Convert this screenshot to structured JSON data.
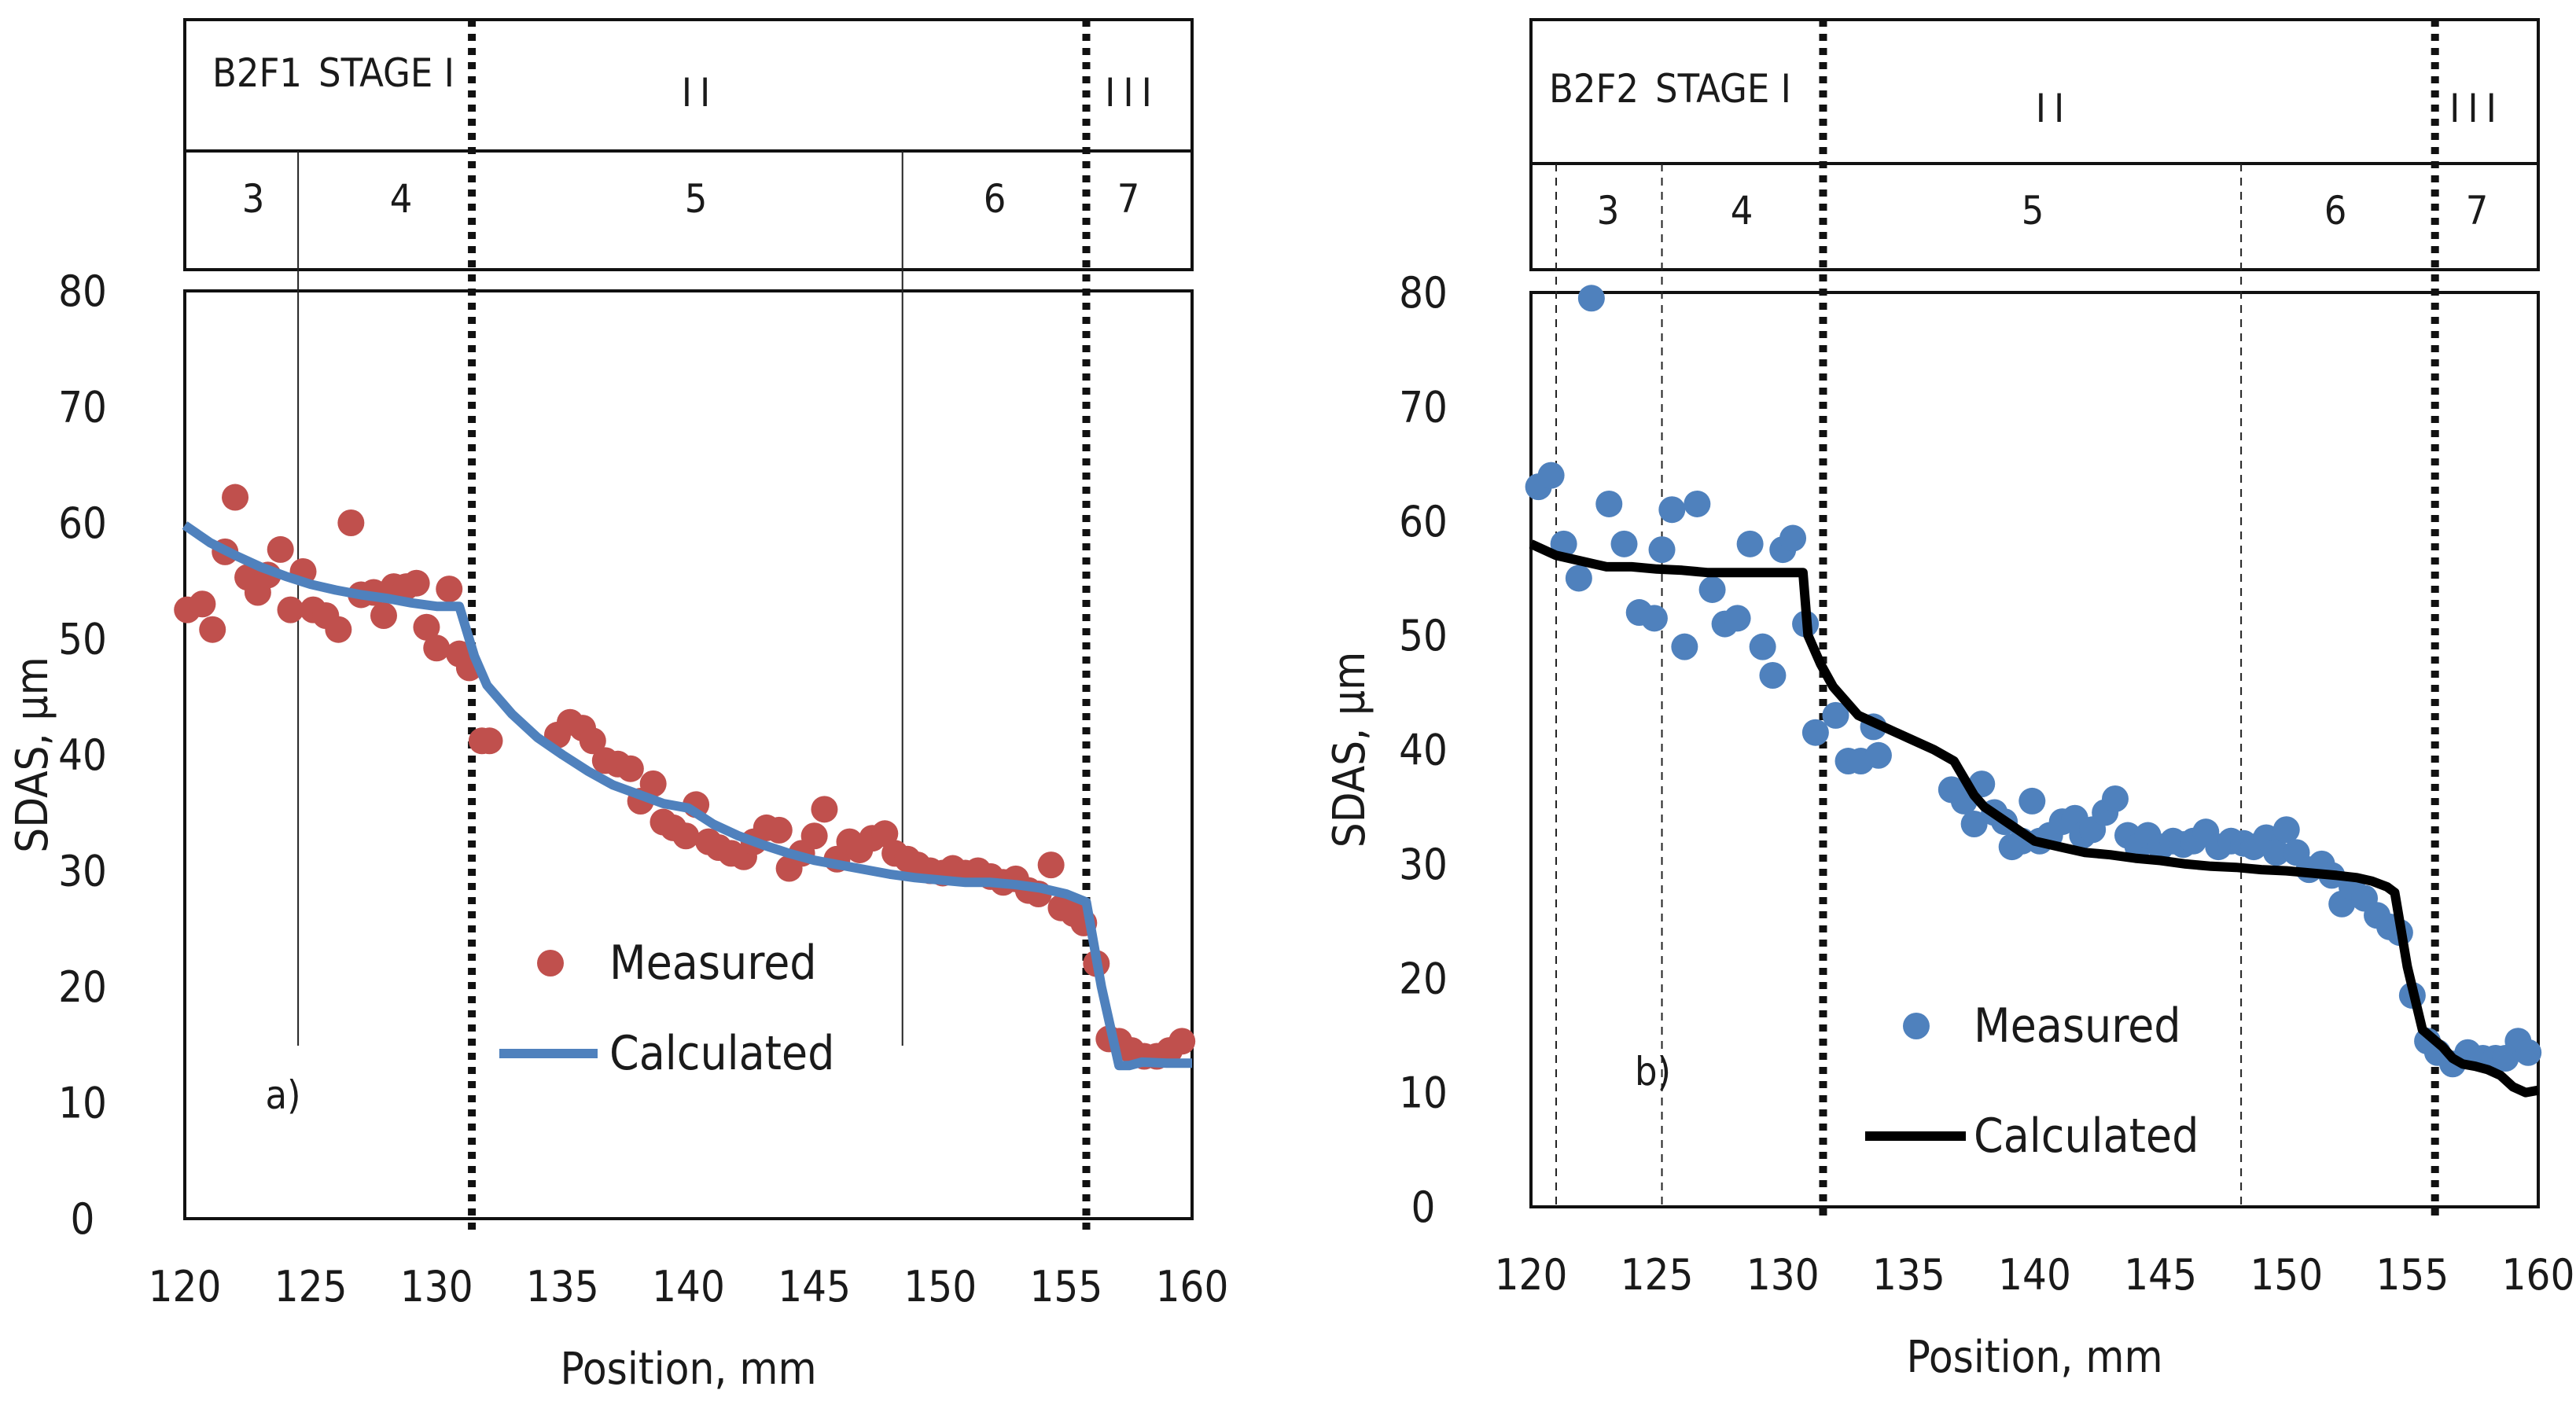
{
  "chart_data": [
    {
      "type": "scatter",
      "panel_label": "a)",
      "xlabel": "Position, mm",
      "ylabel": "SDAS, µm",
      "xlim": [
        120,
        160
      ],
      "ylim": [
        0,
        80
      ],
      "xticks": [
        120,
        125,
        130,
        135,
        140,
        145,
        150,
        155,
        160
      ],
      "yticks": [
        0,
        10,
        20,
        30,
        40,
        50,
        60,
        70,
        80
      ],
      "header": {
        "specimen": "B2F1",
        "stages": [
          "STAGE I",
          "II",
          "III"
        ],
        "zones": [
          "3",
          "4",
          "5",
          "6",
          "7"
        ],
        "stage_boundaries": [
          131.4,
          155.8
        ],
        "zone_boundaries": [
          124.5,
          148.5
        ]
      },
      "measured_color": "#c0504d",
      "calculated_color": "#4f81bd",
      "series": [
        {
          "name": "Measured",
          "style": "markers",
          "x": [
            120.1,
            120.7,
            121.1,
            121.6,
            122.0,
            122.5,
            122.9,
            123.3,
            123.8,
            124.2,
            124.7,
            125.1,
            125.6,
            126.1,
            126.6,
            127.0,
            127.5,
            127.9,
            128.3,
            128.8,
            129.2,
            129.6,
            130.0,
            130.5,
            130.9,
            131.3,
            131.8,
            132.1,
            134.8,
            135.3,
            135.8,
            136.2,
            136.7,
            137.2,
            137.7,
            138.1,
            138.6,
            139.0,
            139.4,
            139.9,
            140.3,
            140.8,
            141.2,
            141.7,
            142.2,
            142.6,
            143.1,
            143.6,
            144.0,
            144.5,
            145.0,
            145.4,
            145.9,
            146.4,
            146.8,
            147.3,
            147.8,
            148.2,
            148.7,
            149.1,
            149.6,
            150.1,
            150.5,
            151.0,
            151.5,
            152.0,
            152.5,
            153.0,
            153.5,
            153.9,
            154.4,
            154.8,
            155.3,
            155.7,
            156.2,
            156.7,
            157.1,
            157.6,
            158.1,
            158.6,
            159.1,
            159.6
          ],
          "y": [
            52.5,
            53.0,
            50.8,
            57.5,
            62.2,
            55.3,
            54.0,
            55.5,
            57.7,
            52.5,
            55.8,
            52.5,
            52.0,
            50.8,
            60.0,
            53.8,
            54.0,
            52.0,
            54.5,
            54.5,
            54.8,
            51.0,
            49.2,
            54.3,
            48.7,
            47.5,
            41.2,
            41.2,
            41.7,
            42.8,
            42.3,
            41.2,
            39.5,
            39.2,
            38.8,
            36.0,
            37.5,
            34.2,
            33.7,
            33.0,
            35.7,
            32.5,
            32.0,
            31.5,
            31.2,
            32.5,
            33.7,
            33.5,
            30.2,
            31.5,
            33.0,
            35.3,
            31.0,
            32.5,
            31.8,
            32.8,
            33.2,
            31.5,
            31.0,
            30.5,
            30.0,
            29.8,
            30.2,
            29.8,
            30.0,
            29.5,
            29.0,
            29.3,
            28.3,
            28.0,
            30.5,
            26.8,
            26.3,
            25.5,
            22.0,
            15.5,
            15.3,
            14.5,
            14.0,
            14.0,
            14.5,
            15.3
          ]
        },
        {
          "name": "Calculated",
          "style": "line",
          "x": [
            120,
            121,
            122,
            123,
            124,
            125,
            126,
            127,
            128,
            129,
            130,
            130.5,
            130.9,
            131.5,
            132,
            133,
            134,
            135,
            136,
            137,
            138,
            139,
            140,
            141,
            142,
            143,
            144,
            145,
            146,
            147,
            148,
            149,
            150,
            151,
            152,
            153,
            154,
            155,
            155.8,
            156.4,
            157.1,
            157.5,
            158,
            159,
            160
          ],
          "y": [
            59.8,
            58.3,
            57.2,
            56.2,
            55.4,
            54.7,
            54.2,
            53.8,
            53.5,
            53.1,
            52.8,
            52.8,
            52.8,
            48.5,
            46.0,
            43.5,
            41.5,
            40.0,
            38.6,
            37.4,
            36.6,
            35.8,
            35.4,
            34.0,
            33.0,
            32.2,
            31.5,
            30.9,
            30.5,
            30.1,
            29.7,
            29.4,
            29.2,
            29.0,
            29.0,
            28.8,
            28.5,
            28.0,
            27.3,
            20.0,
            13.2,
            13.2,
            13.5,
            13.4,
            13.4
          ]
        }
      ]
    },
    {
      "type": "scatter",
      "panel_label": "b)",
      "xlabel": "Position, mm",
      "ylabel": "SDAS, µm",
      "xlim": [
        120,
        160
      ],
      "ylim": [
        0,
        80
      ],
      "xticks": [
        120,
        125,
        130,
        135,
        140,
        145,
        150,
        155,
        160
      ],
      "yticks": [
        0,
        10,
        20,
        30,
        40,
        50,
        60,
        70,
        80
      ],
      "header": {
        "specimen": "B2F2",
        "stages": [
          "STAGE I",
          "II",
          "III"
        ],
        "zones": [
          "3",
          "4",
          "5",
          "6",
          "7"
        ],
        "stage_boundaries": [
          131.6,
          155.9
        ],
        "zone_boundaries": [
          121.0,
          125.2,
          148.2
        ]
      },
      "measured_color": "#4f81bd",
      "calculated_color": "#000000",
      "series": [
        {
          "name": "Measured",
          "style": "markers",
          "x": [
            120.3,
            120.8,
            121.3,
            121.9,
            122.4,
            123.1,
            123.7,
            124.3,
            124.9,
            125.2,
            125.6,
            126.1,
            126.6,
            127.2,
            127.7,
            128.2,
            128.7,
            129.2,
            129.6,
            130.0,
            130.4,
            130.9,
            131.3,
            132.1,
            132.6,
            133.1,
            133.6,
            133.8,
            136.7,
            137.2,
            137.6,
            137.9,
            138.4,
            138.8,
            139.1,
            139.5,
            139.9,
            140.2,
            140.6,
            141.1,
            141.6,
            141.9,
            142.3,
            142.8,
            143.2,
            143.7,
            144.1,
            144.5,
            145.0,
            145.5,
            145.9,
            146.3,
            146.8,
            147.3,
            147.8,
            148.3,
            148.7,
            149.2,
            149.6,
            150.0,
            150.4,
            150.9,
            151.4,
            151.8,
            152.2,
            152.6,
            153.1,
            153.6,
            154.1,
            154.5,
            155.0,
            155.6,
            156.0,
            156.6,
            157.2,
            157.8,
            158.3,
            158.7,
            159.2,
            159.6
          ],
          "y": [
            63.0,
            64.0,
            58.0,
            55.0,
            79.5,
            61.5,
            58.0,
            52.0,
            51.5,
            57.5,
            61.0,
            49.0,
            61.5,
            54.0,
            51.0,
            51.5,
            58.0,
            49.0,
            46.5,
            57.5,
            58.5,
            51.0,
            41.5,
            43.0,
            39.0,
            39.0,
            42.0,
            39.5,
            36.5,
            35.5,
            33.5,
            37.0,
            34.5,
            33.7,
            31.5,
            32.0,
            35.5,
            32.0,
            32.5,
            33.7,
            34.0,
            32.5,
            33.0,
            34.5,
            35.7,
            32.5,
            31.5,
            32.5,
            31.5,
            32.0,
            31.7,
            32.0,
            32.8,
            31.5,
            32.0,
            31.8,
            31.5,
            32.3,
            31.0,
            33.0,
            31.0,
            29.5,
            30.0,
            29.0,
            26.5,
            28.0,
            27.0,
            25.5,
            24.5,
            24.0,
            18.5,
            14.5,
            13.5,
            12.5,
            13.5,
            13.0,
            13.0,
            13.0,
            14.5,
            13.5
          ]
        },
        {
          "name": "Calculated",
          "style": "line",
          "x": [
            120,
            121,
            122,
            123,
            124,
            125,
            126,
            127,
            128,
            129,
            130,
            130.8,
            131,
            131.5,
            132,
            133,
            134,
            135,
            136,
            136.8,
            137.6,
            138,
            139,
            140,
            141,
            142,
            143,
            144,
            145,
            146,
            147,
            148,
            149,
            150,
            151,
            152,
            152.8,
            153.4,
            154,
            154.3,
            154.8,
            155.4,
            156.2,
            156.6,
            157,
            157.5,
            158,
            158.5,
            159,
            159.5,
            160
          ],
          "y": [
            58.0,
            57.0,
            56.5,
            56.0,
            56.0,
            55.8,
            55.7,
            55.5,
            55.5,
            55.5,
            55.5,
            55.5,
            50.0,
            47.5,
            45.5,
            43.0,
            42.0,
            41.0,
            40.0,
            39.0,
            36.0,
            35.0,
            33.5,
            32.0,
            31.5,
            31.0,
            30.8,
            30.5,
            30.3,
            30.0,
            29.8,
            29.7,
            29.5,
            29.4,
            29.2,
            29.0,
            28.8,
            28.5,
            28.0,
            27.5,
            21.0,
            15.5,
            14.0,
            13.0,
            12.5,
            12.3,
            12.0,
            11.5,
            10.5,
            10.0,
            10.2
          ]
        }
      ]
    }
  ]
}
